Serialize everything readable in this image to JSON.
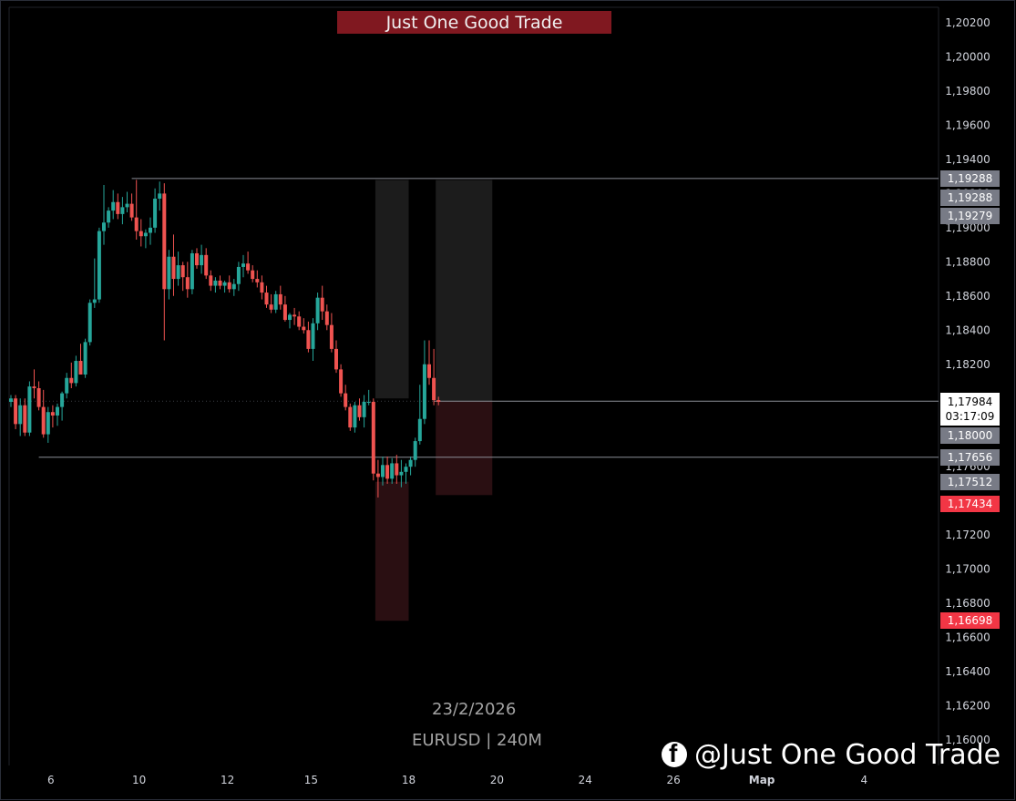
{
  "banner": "Just One Good Trade",
  "watermark": {
    "date": "23/2/2026",
    "symbol": "EURUSD | 240M"
  },
  "handle": "@Just One Good Trade",
  "colors": {
    "up": "#26a69a",
    "down": "#ef5350",
    "bg": "#000000",
    "banner": "#801820",
    "zone_gray": "#1c1c1c",
    "zone_red": "#2a0f12"
  },
  "current_price": {
    "price": "1,17984",
    "countdown": "03:17:09"
  },
  "price_labels": [
    {
      "text": "1,19288",
      "y": 1.19288,
      "style": "gray"
    },
    {
      "text": "1,19288",
      "y": 1.19178,
      "style": "gray"
    },
    {
      "text": "1,19279",
      "y": 1.19068,
      "style": "gray"
    },
    {
      "text": "1,18000",
      "y": 1.1789,
      "style": "gray"
    },
    {
      "text": "1,18000",
      "y": 1.1778,
      "style": "gray"
    },
    {
      "text": "1,17656",
      "y": 1.17656,
      "style": "gray"
    },
    {
      "text": "1,17512",
      "y": 1.17512,
      "style": "gray"
    },
    {
      "text": "1,17434",
      "y": 1.1738,
      "style": "red"
    },
    {
      "text": "1,16698",
      "y": 1.16698,
      "style": "red"
    }
  ],
  "chart_data": {
    "type": "candlestick",
    "symbol": "EURUSD",
    "timeframe": "240M",
    "ylim": [
      1.1598,
      1.203
    ],
    "y_ticks": [
      "1,20200",
      "1,20000",
      "1,19800",
      "1,19600",
      "1,19400",
      "1,19200",
      "1,19000",
      "1,18800",
      "1,18600",
      "1,18400",
      "1,18200",
      "1,18000",
      "1,17800",
      "1,17600",
      "1,17400",
      "1,17200",
      "1,17000",
      "1,16800",
      "1,16600",
      "1,16400",
      "1,16200",
      "1,16000"
    ],
    "y_tick_values": [
      1.202,
      1.2,
      1.198,
      1.196,
      1.194,
      1.192,
      1.19,
      1.188,
      1.186,
      1.184,
      1.182,
      1.18,
      1.178,
      1.176,
      1.174,
      1.172,
      1.17,
      1.168,
      1.166,
      1.164,
      1.162,
      1.16
    ],
    "x_ticks": [
      {
        "label": "6",
        "i": 8
      },
      {
        "label": "10",
        "i": 27
      },
      {
        "label": "12",
        "i": 46
      },
      {
        "label": "15",
        "i": 64
      },
      {
        "label": "18",
        "i": 85
      },
      {
        "label": "20",
        "i": 104
      },
      {
        "label": "24",
        "i": 123
      },
      {
        "label": "26",
        "i": 142
      },
      {
        "label": "Мар",
        "i": 161
      },
      {
        "label": "4",
        "i": 183
      }
    ],
    "candles": [
      [
        1.1798,
        1.1802,
        1.1795,
        1.18
      ],
      [
        1.18,
        1.1802,
        1.1782,
        1.1785
      ],
      [
        1.1785,
        1.18,
        1.1778,
        1.1796
      ],
      [
        1.1796,
        1.18,
        1.1778,
        1.178
      ],
      [
        1.178,
        1.181,
        1.1778,
        1.1807
      ],
      [
        1.1807,
        1.1817,
        1.18,
        1.1806
      ],
      [
        1.1806,
        1.181,
        1.1793,
        1.1795
      ],
      [
        1.1795,
        1.1805,
        1.1777,
        1.1779
      ],
      [
        1.1779,
        1.1795,
        1.1774,
        1.1792
      ],
      [
        1.1792,
        1.1796,
        1.1783,
        1.179
      ],
      [
        1.179,
        1.1797,
        1.1784,
        1.1795
      ],
      [
        1.1795,
        1.1804,
        1.1787,
        1.1803
      ],
      [
        1.1803,
        1.1815,
        1.18,
        1.1812
      ],
      [
        1.1812,
        1.1821,
        1.1806,
        1.1809
      ],
      [
        1.1809,
        1.1825,
        1.1807,
        1.1822
      ],
      [
        1.1822,
        1.1832,
        1.1815,
        1.1814
      ],
      [
        1.1814,
        1.1835,
        1.1812,
        1.1833
      ],
      [
        1.1833,
        1.1858,
        1.1831,
        1.1856
      ],
      [
        1.1856,
        1.1882,
        1.1853,
        1.1858
      ],
      [
        1.1858,
        1.19,
        1.1856,
        1.1898
      ],
      [
        1.1898,
        1.1925,
        1.189,
        1.1903
      ],
      [
        1.1903,
        1.1912,
        1.19,
        1.191
      ],
      [
        1.191,
        1.1922,
        1.1905,
        1.1915
      ],
      [
        1.1915,
        1.192,
        1.1905,
        1.1908
      ],
      [
        1.1908,
        1.1918,
        1.1902,
        1.1912
      ],
      [
        1.1912,
        1.1921,
        1.1909,
        1.1914
      ],
      [
        1.1914,
        1.192,
        1.1904,
        1.1906
      ],
      [
        1.1906,
        1.1928,
        1.1893,
        1.1898
      ],
      [
        1.1898,
        1.1905,
        1.1889,
        1.1895
      ],
      [
        1.1895,
        1.1899,
        1.1888,
        1.1897
      ],
      [
        1.1897,
        1.1906,
        1.189,
        1.19
      ],
      [
        1.19,
        1.1923,
        1.1897,
        1.1917
      ],
      [
        1.1917,
        1.1927,
        1.191,
        1.192
      ],
      [
        1.192,
        1.1926,
        1.1834,
        1.1864
      ],
      [
        1.1864,
        1.1887,
        1.1858,
        1.1883
      ],
      [
        1.1883,
        1.1896,
        1.186,
        1.187
      ],
      [
        1.187,
        1.1886,
        1.1866,
        1.1878
      ],
      [
        1.1878,
        1.188,
        1.1863,
        1.1871
      ],
      [
        1.1871,
        1.188,
        1.1859,
        1.1864
      ],
      [
        1.1864,
        1.1887,
        1.1861,
        1.1885
      ],
      [
        1.1885,
        1.1888,
        1.1876,
        1.1878
      ],
      [
        1.1878,
        1.189,
        1.1873,
        1.1884
      ],
      [
        1.1884,
        1.1888,
        1.187,
        1.1872
      ],
      [
        1.1872,
        1.1875,
        1.1863,
        1.1866
      ],
      [
        1.1866,
        1.1871,
        1.1862,
        1.1869
      ],
      [
        1.1869,
        1.1872,
        1.1864,
        1.1866
      ],
      [
        1.1866,
        1.1869,
        1.1862,
        1.1868
      ],
      [
        1.1868,
        1.1872,
        1.1862,
        1.1864
      ],
      [
        1.1864,
        1.187,
        1.186,
        1.1867
      ],
      [
        1.1867,
        1.188,
        1.1863,
        1.1877
      ],
      [
        1.1877,
        1.1884,
        1.1871,
        1.1879
      ],
      [
        1.1879,
        1.1886,
        1.1873,
        1.1875
      ],
      [
        1.1875,
        1.1878,
        1.1868,
        1.187
      ],
      [
        1.187,
        1.1875,
        1.1865,
        1.1868
      ],
      [
        1.1868,
        1.1872,
        1.1858,
        1.1862
      ],
      [
        1.1862,
        1.1866,
        1.1853,
        1.1855
      ],
      [
        1.1855,
        1.1861,
        1.185,
        1.1852
      ],
      [
        1.1852,
        1.1863,
        1.185,
        1.1861
      ],
      [
        1.1861,
        1.1866,
        1.1852,
        1.1855
      ],
      [
        1.1855,
        1.186,
        1.1845,
        1.1846
      ],
      [
        1.1846,
        1.185,
        1.1841,
        1.1849
      ],
      [
        1.1849,
        1.1853,
        1.1843,
        1.1848
      ],
      [
        1.1848,
        1.1851,
        1.184,
        1.1842
      ],
      [
        1.1842,
        1.1847,
        1.1838,
        1.184
      ],
      [
        1.184,
        1.1845,
        1.1827,
        1.1829
      ],
      [
        1.1829,
        1.1847,
        1.1822,
        1.1844
      ],
      [
        1.1844,
        1.1862,
        1.184,
        1.1859
      ],
      [
        1.1859,
        1.1866,
        1.1846,
        1.1851
      ],
      [
        1.1851,
        1.1855,
        1.184,
        1.1843
      ],
      [
        1.1843,
        1.185,
        1.1827,
        1.1829
      ],
      [
        1.1829,
        1.1834,
        1.1815,
        1.1817
      ],
      [
        1.1817,
        1.182,
        1.1801,
        1.1803
      ],
      [
        1.1803,
        1.1808,
        1.1793,
        1.1795
      ],
      [
        1.1795,
        1.1797,
        1.1781,
        1.1783
      ],
      [
        1.1783,
        1.1798,
        1.178,
        1.1796
      ],
      [
        1.1796,
        1.18,
        1.1787,
        1.1789
      ],
      [
        1.1789,
        1.1802,
        1.1783,
        1.1798
      ],
      [
        1.1798,
        1.1805,
        1.1796,
        1.1798
      ],
      [
        1.1798,
        1.18,
        1.1752,
        1.1756
      ],
      [
        1.1756,
        1.1764,
        1.1742,
        1.1754
      ],
      [
        1.1754,
        1.1766,
        1.1749,
        1.1761
      ],
      [
        1.1761,
        1.1766,
        1.175,
        1.1753
      ],
      [
        1.1753,
        1.1765,
        1.175,
        1.1762
      ],
      [
        1.1762,
        1.1767,
        1.175,
        1.1755
      ],
      [
        1.1755,
        1.1764,
        1.1748,
        1.1757
      ],
      [
        1.1757,
        1.1762,
        1.175,
        1.176
      ],
      [
        1.176,
        1.1766,
        1.1755,
        1.1764
      ],
      [
        1.1764,
        1.1777,
        1.176,
        1.1775
      ],
      [
        1.1775,
        1.1808,
        1.1773,
        1.1788
      ],
      [
        1.1788,
        1.1834,
        1.1785,
        1.182
      ],
      [
        1.182,
        1.1834,
        1.1808,
        1.1812
      ],
      [
        1.1812,
        1.1829,
        1.1796,
        1.1799
      ],
      [
        1.1799,
        1.1801,
        1.1796,
        1.1798
      ]
    ],
    "horizontal_lines": [
      {
        "y": 1.19288,
        "from_i": 26
      },
      {
        "y": 1.17984,
        "from_i": 91
      },
      {
        "y": 1.17656,
        "from_i": 6
      }
    ],
    "zones": [
      {
        "from_i": 79,
        "to_i": 85,
        "top": 1.19279,
        "bottom": 1.18,
        "kind": "gray"
      },
      {
        "from_i": 79,
        "to_i": 85,
        "top": 1.17512,
        "bottom": 1.16698,
        "kind": "red"
      },
      {
        "from_i": 92,
        "to_i": 103,
        "top": 1.19279,
        "bottom": 1.17984,
        "kind": "gray"
      },
      {
        "from_i": 92,
        "to_i": 103,
        "top": 1.17984,
        "bottom": 1.17434,
        "kind": "red"
      }
    ]
  }
}
